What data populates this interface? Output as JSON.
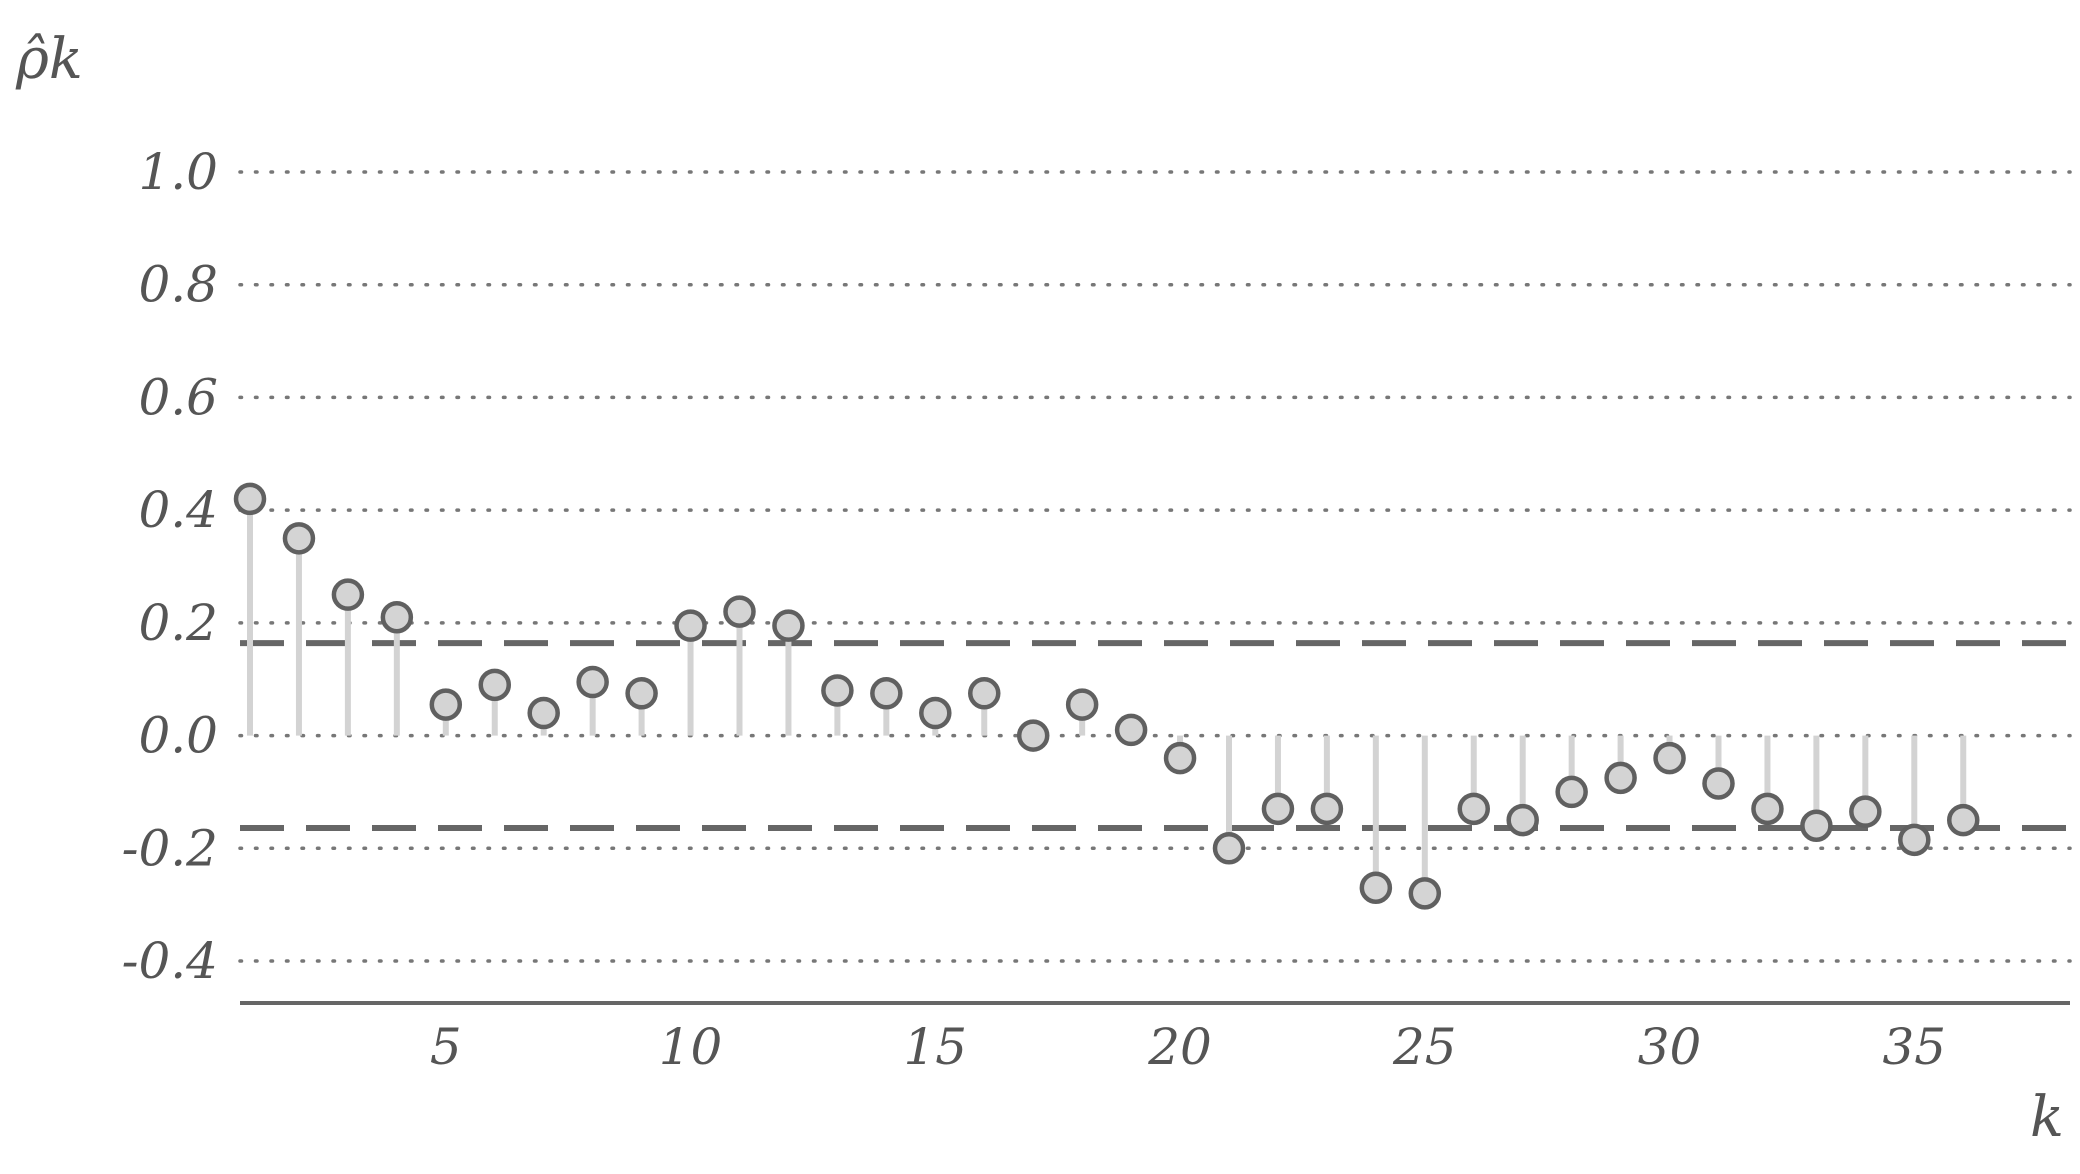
{
  "chart_data": {
    "type": "stem",
    "ylabel": "ρ̂k",
    "xlabel": "k",
    "ylim": [
      -0.4,
      1.0
    ],
    "xlim": [
      0,
      37
    ],
    "yticks": [
      "1.0",
      "0.8",
      "0.6",
      "0.4",
      "0.2",
      "0.0",
      "-0.2",
      "-0.4"
    ],
    "xticks": [
      "5",
      "10",
      "15",
      "20",
      "25",
      "30",
      "35"
    ],
    "grid": "horizontal dotted",
    "confidence_band": [
      0.164,
      -0.164
    ],
    "lags": [
      1,
      2,
      3,
      4,
      5,
      6,
      7,
      8,
      9,
      10,
      11,
      12,
      13,
      14,
      15,
      16,
      17,
      18,
      19,
      20,
      21,
      22,
      23,
      24,
      25,
      26,
      27,
      28,
      29,
      30,
      31,
      32,
      33,
      34,
      35,
      36
    ],
    "values": [
      0.42,
      0.35,
      0.25,
      0.21,
      0.055,
      0.09,
      0.04,
      0.095,
      0.075,
      0.195,
      0.22,
      0.195,
      0.08,
      0.075,
      0.04,
      0.075,
      0.0,
      0.055,
      0.01,
      -0.04,
      -0.2,
      -0.13,
      -0.13,
      -0.27,
      -0.28,
      -0.13,
      -0.15,
      -0.1,
      -0.075,
      -0.04,
      -0.085,
      -0.13,
      -0.16,
      -0.135,
      -0.185,
      -0.15
    ]
  },
  "colors": {
    "marker_fill": "#d4d4d4",
    "marker_stroke": "#606060",
    "stem": "#d3d3d3",
    "band": "#666666",
    "grid": "#777777",
    "axis": "#666666",
    "text": "#555555"
  }
}
